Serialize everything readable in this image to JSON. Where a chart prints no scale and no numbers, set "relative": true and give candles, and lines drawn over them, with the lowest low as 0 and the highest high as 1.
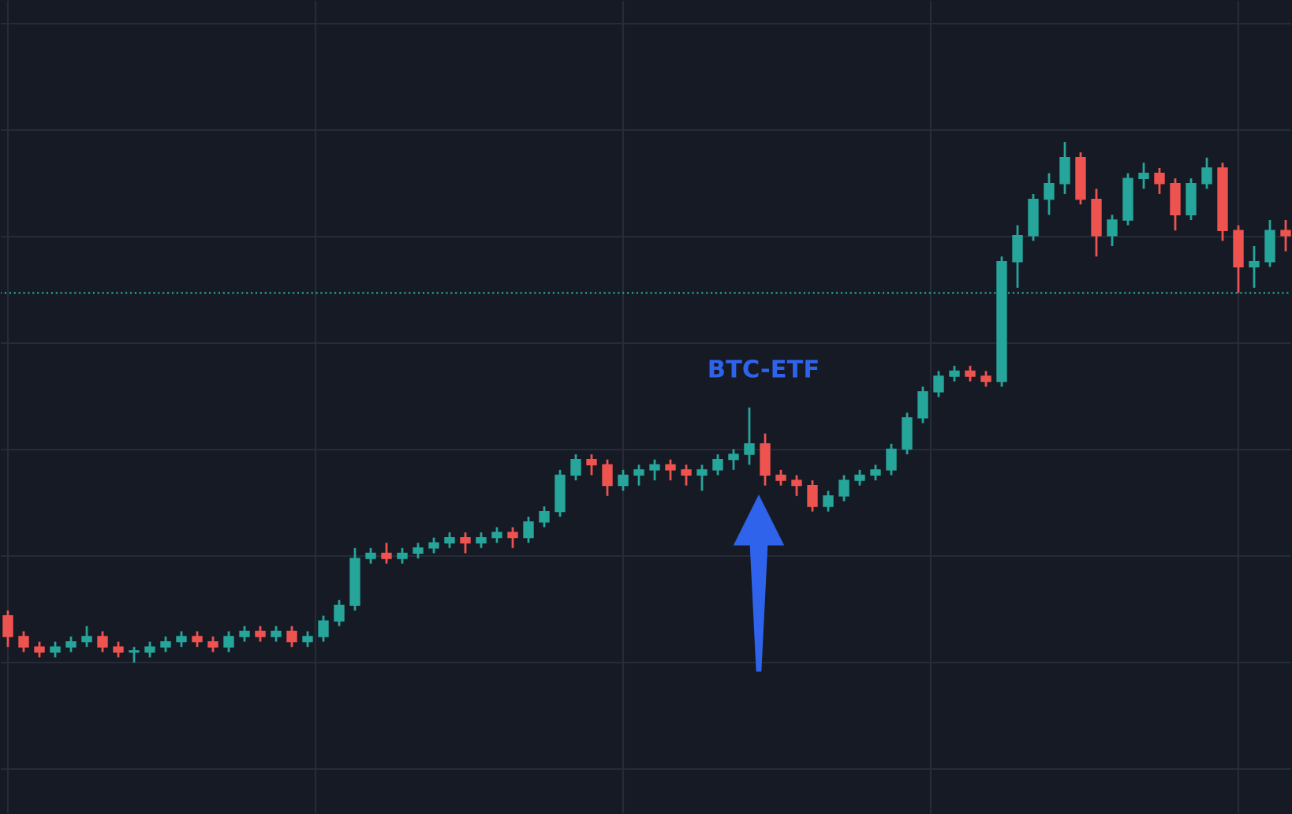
{
  "chart_data": {
    "type": "candlestick",
    "relative": true,
    "grid": true,
    "tick_labels": false,
    "categories": [
      null,
      null,
      null,
      null,
      null,
      null,
      null,
      null,
      null,
      null,
      null,
      null,
      null,
      null,
      null,
      null,
      null,
      null,
      null,
      null,
      null,
      null,
      null,
      null,
      null,
      null,
      null,
      null,
      null,
      null,
      null,
      null,
      null,
      null,
      null,
      null,
      null,
      null,
      null,
      null,
      null,
      null,
      null,
      null,
      null,
      null,
      null,
      null,
      null,
      null,
      null,
      null,
      null,
      null,
      null,
      null,
      null,
      null,
      null,
      null,
      null,
      null,
      null,
      null,
      null,
      null,
      null,
      null,
      null,
      null,
      null,
      null,
      null,
      null,
      null,
      null,
      null,
      null,
      null,
      null,
      null,
      null
    ],
    "colors": [
      "#ef5350",
      "#ef5350",
      "#ef5350",
      "#26a69a",
      "#26a69a",
      "#26a69a",
      "#ef5350",
      "#ef5350",
      "#26a69a",
      "#26a69a",
      "#26a69a",
      "#26a69a",
      "#ef5350",
      "#ef5350",
      "#26a69a",
      "#26a69a",
      "#ef5350",
      "#26a69a",
      "#ef5350",
      "#26a69a",
      "#26a69a",
      "#26a69a",
      "#26a69a",
      "#26a69a",
      "#ef5350",
      "#26a69a",
      "#26a69a",
      "#26a69a",
      "#26a69a",
      "#ef5350",
      "#26a69a",
      "#26a69a",
      "#ef5350",
      "#26a69a",
      "#26a69a",
      "#26a69a",
      "#26a69a",
      "#ef5350",
      "#ef5350",
      "#26a69a",
      "#26a69a",
      "#26a69a",
      "#ef5350",
      "#ef5350",
      "#26a69a",
      "#26a69a",
      "#26a69a",
      "#26a69a",
      "#ef5350",
      "#ef5350",
      "#ef5350",
      "#ef5350",
      "#26a69a",
      "#26a69a",
      "#26a69a",
      "#26a69a",
      "#26a69a",
      "#26a69a",
      "#26a69a",
      "#26a69a",
      "#26a69a",
      "#ef5350",
      "#ef5350",
      "#26a69a",
      "#26a69a",
      "#26a69a",
      "#26a69a",
      "#26a69a",
      "#ef5350",
      "#ef5350",
      "#26a69a",
      "#26a69a",
      "#26a69a",
      "#ef5350",
      "#ef5350",
      "#26a69a",
      "#26a69a",
      "#ef5350",
      "#ef5350",
      "#26a69a",
      "#26a69a",
      "#ef5350"
    ],
    "annotations": [
      "BTC-ETF"
    ],
    "ref_lines": [
      {
        "axis": "y",
        "value": 0.71,
        "color": "#26a69a",
        "line_style": "dotted"
      }
    ],
    "ohlc": [
      [
        0.09,
        0.1,
        0.03,
        0.05
      ],
      [
        0.05,
        0.06,
        0.02,
        0.03
      ],
      [
        0.03,
        0.04,
        0.01,
        0.02
      ],
      [
        0.02,
        0.04,
        0.01,
        0.03
      ],
      [
        0.03,
        0.05,
        0.02,
        0.04
      ],
      [
        0.04,
        0.07,
        0.03,
        0.05
      ],
      [
        0.05,
        0.06,
        0.02,
        0.03
      ],
      [
        0.03,
        0.04,
        0.01,
        0.02
      ],
      [
        0.02,
        0.03,
        0.0,
        0.02
      ],
      [
        0.02,
        0.04,
        0.01,
        0.03
      ],
      [
        0.03,
        0.05,
        0.02,
        0.04
      ],
      [
        0.04,
        0.06,
        0.03,
        0.05
      ],
      [
        0.05,
        0.06,
        0.03,
        0.04
      ],
      [
        0.04,
        0.05,
        0.02,
        0.03
      ],
      [
        0.03,
        0.06,
        0.02,
        0.05
      ],
      [
        0.05,
        0.07,
        0.04,
        0.06
      ],
      [
        0.06,
        0.07,
        0.04,
        0.05
      ],
      [
        0.05,
        0.07,
        0.04,
        0.06
      ],
      [
        0.06,
        0.07,
        0.03,
        0.04
      ],
      [
        0.04,
        0.06,
        0.03,
        0.05
      ],
      [
        0.05,
        0.09,
        0.04,
        0.08
      ],
      [
        0.08,
        0.12,
        0.07,
        0.11
      ],
      [
        0.11,
        0.22,
        0.1,
        0.2
      ],
      [
        0.2,
        0.22,
        0.19,
        0.21
      ],
      [
        0.21,
        0.23,
        0.19,
        0.2
      ],
      [
        0.2,
        0.22,
        0.19,
        0.21
      ],
      [
        0.21,
        0.23,
        0.2,
        0.22
      ],
      [
        0.22,
        0.24,
        0.21,
        0.23
      ],
      [
        0.23,
        0.25,
        0.22,
        0.24
      ],
      [
        0.24,
        0.25,
        0.21,
        0.23
      ],
      [
        0.23,
        0.25,
        0.22,
        0.24
      ],
      [
        0.24,
        0.26,
        0.23,
        0.25
      ],
      [
        0.25,
        0.26,
        0.22,
        0.24
      ],
      [
        0.24,
        0.28,
        0.23,
        0.27
      ],
      [
        0.27,
        0.3,
        0.26,
        0.29
      ],
      [
        0.29,
        0.37,
        0.28,
        0.36
      ],
      [
        0.36,
        0.4,
        0.35,
        0.39
      ],
      [
        0.39,
        0.4,
        0.36,
        0.38
      ],
      [
        0.38,
        0.39,
        0.32,
        0.34
      ],
      [
        0.34,
        0.37,
        0.33,
        0.36
      ],
      [
        0.36,
        0.38,
        0.34,
        0.37
      ],
      [
        0.37,
        0.39,
        0.35,
        0.38
      ],
      [
        0.38,
        0.39,
        0.35,
        0.37
      ],
      [
        0.37,
        0.38,
        0.34,
        0.36
      ],
      [
        0.36,
        0.38,
        0.33,
        0.37
      ],
      [
        0.37,
        0.4,
        0.36,
        0.39
      ],
      [
        0.39,
        0.41,
        0.37,
        0.4
      ],
      [
        0.4,
        0.49,
        0.38,
        0.42
      ],
      [
        0.42,
        0.44,
        0.34,
        0.36
      ],
      [
        0.36,
        0.37,
        0.34,
        0.35
      ],
      [
        0.35,
        0.36,
        0.32,
        0.34
      ],
      [
        0.34,
        0.35,
        0.29,
        0.3
      ],
      [
        0.3,
        0.33,
        0.29,
        0.32
      ],
      [
        0.32,
        0.36,
        0.31,
        0.35
      ],
      [
        0.35,
        0.37,
        0.34,
        0.36
      ],
      [
        0.36,
        0.38,
        0.35,
        0.37
      ],
      [
        0.37,
        0.42,
        0.36,
        0.41
      ],
      [
        0.41,
        0.48,
        0.4,
        0.47
      ],
      [
        0.47,
        0.53,
        0.46,
        0.52
      ],
      [
        0.52,
        0.56,
        0.51,
        0.55
      ],
      [
        0.55,
        0.57,
        0.54,
        0.56
      ],
      [
        0.56,
        0.57,
        0.54,
        0.55
      ],
      [
        0.55,
        0.56,
        0.53,
        0.54
      ],
      [
        0.54,
        0.78,
        0.53,
        0.77
      ],
      [
        0.77,
        0.84,
        0.72,
        0.82
      ],
      [
        0.82,
        0.9,
        0.81,
        0.89
      ],
      [
        0.89,
        0.94,
        0.86,
        0.92
      ],
      [
        0.92,
        1.0,
        0.9,
        0.97
      ],
      [
        0.97,
        0.98,
        0.88,
        0.89
      ],
      [
        0.89,
        0.91,
        0.78,
        0.82
      ],
      [
        0.82,
        0.86,
        0.8,
        0.85
      ],
      [
        0.85,
        0.94,
        0.84,
        0.93
      ],
      [
        0.93,
        0.96,
        0.91,
        0.94
      ],
      [
        0.94,
        0.95,
        0.9,
        0.92
      ],
      [
        0.92,
        0.93,
        0.83,
        0.86
      ],
      [
        0.86,
        0.93,
        0.85,
        0.92
      ],
      [
        0.92,
        0.97,
        0.91,
        0.95
      ],
      [
        0.95,
        0.96,
        0.81,
        0.83
      ],
      [
        0.83,
        0.84,
        0.71,
        0.76
      ],
      [
        0.76,
        0.8,
        0.72,
        0.77
      ],
      [
        0.77,
        0.85,
        0.76,
        0.83
      ],
      [
        0.83,
        0.85,
        0.79,
        0.82
      ]
    ]
  }
}
